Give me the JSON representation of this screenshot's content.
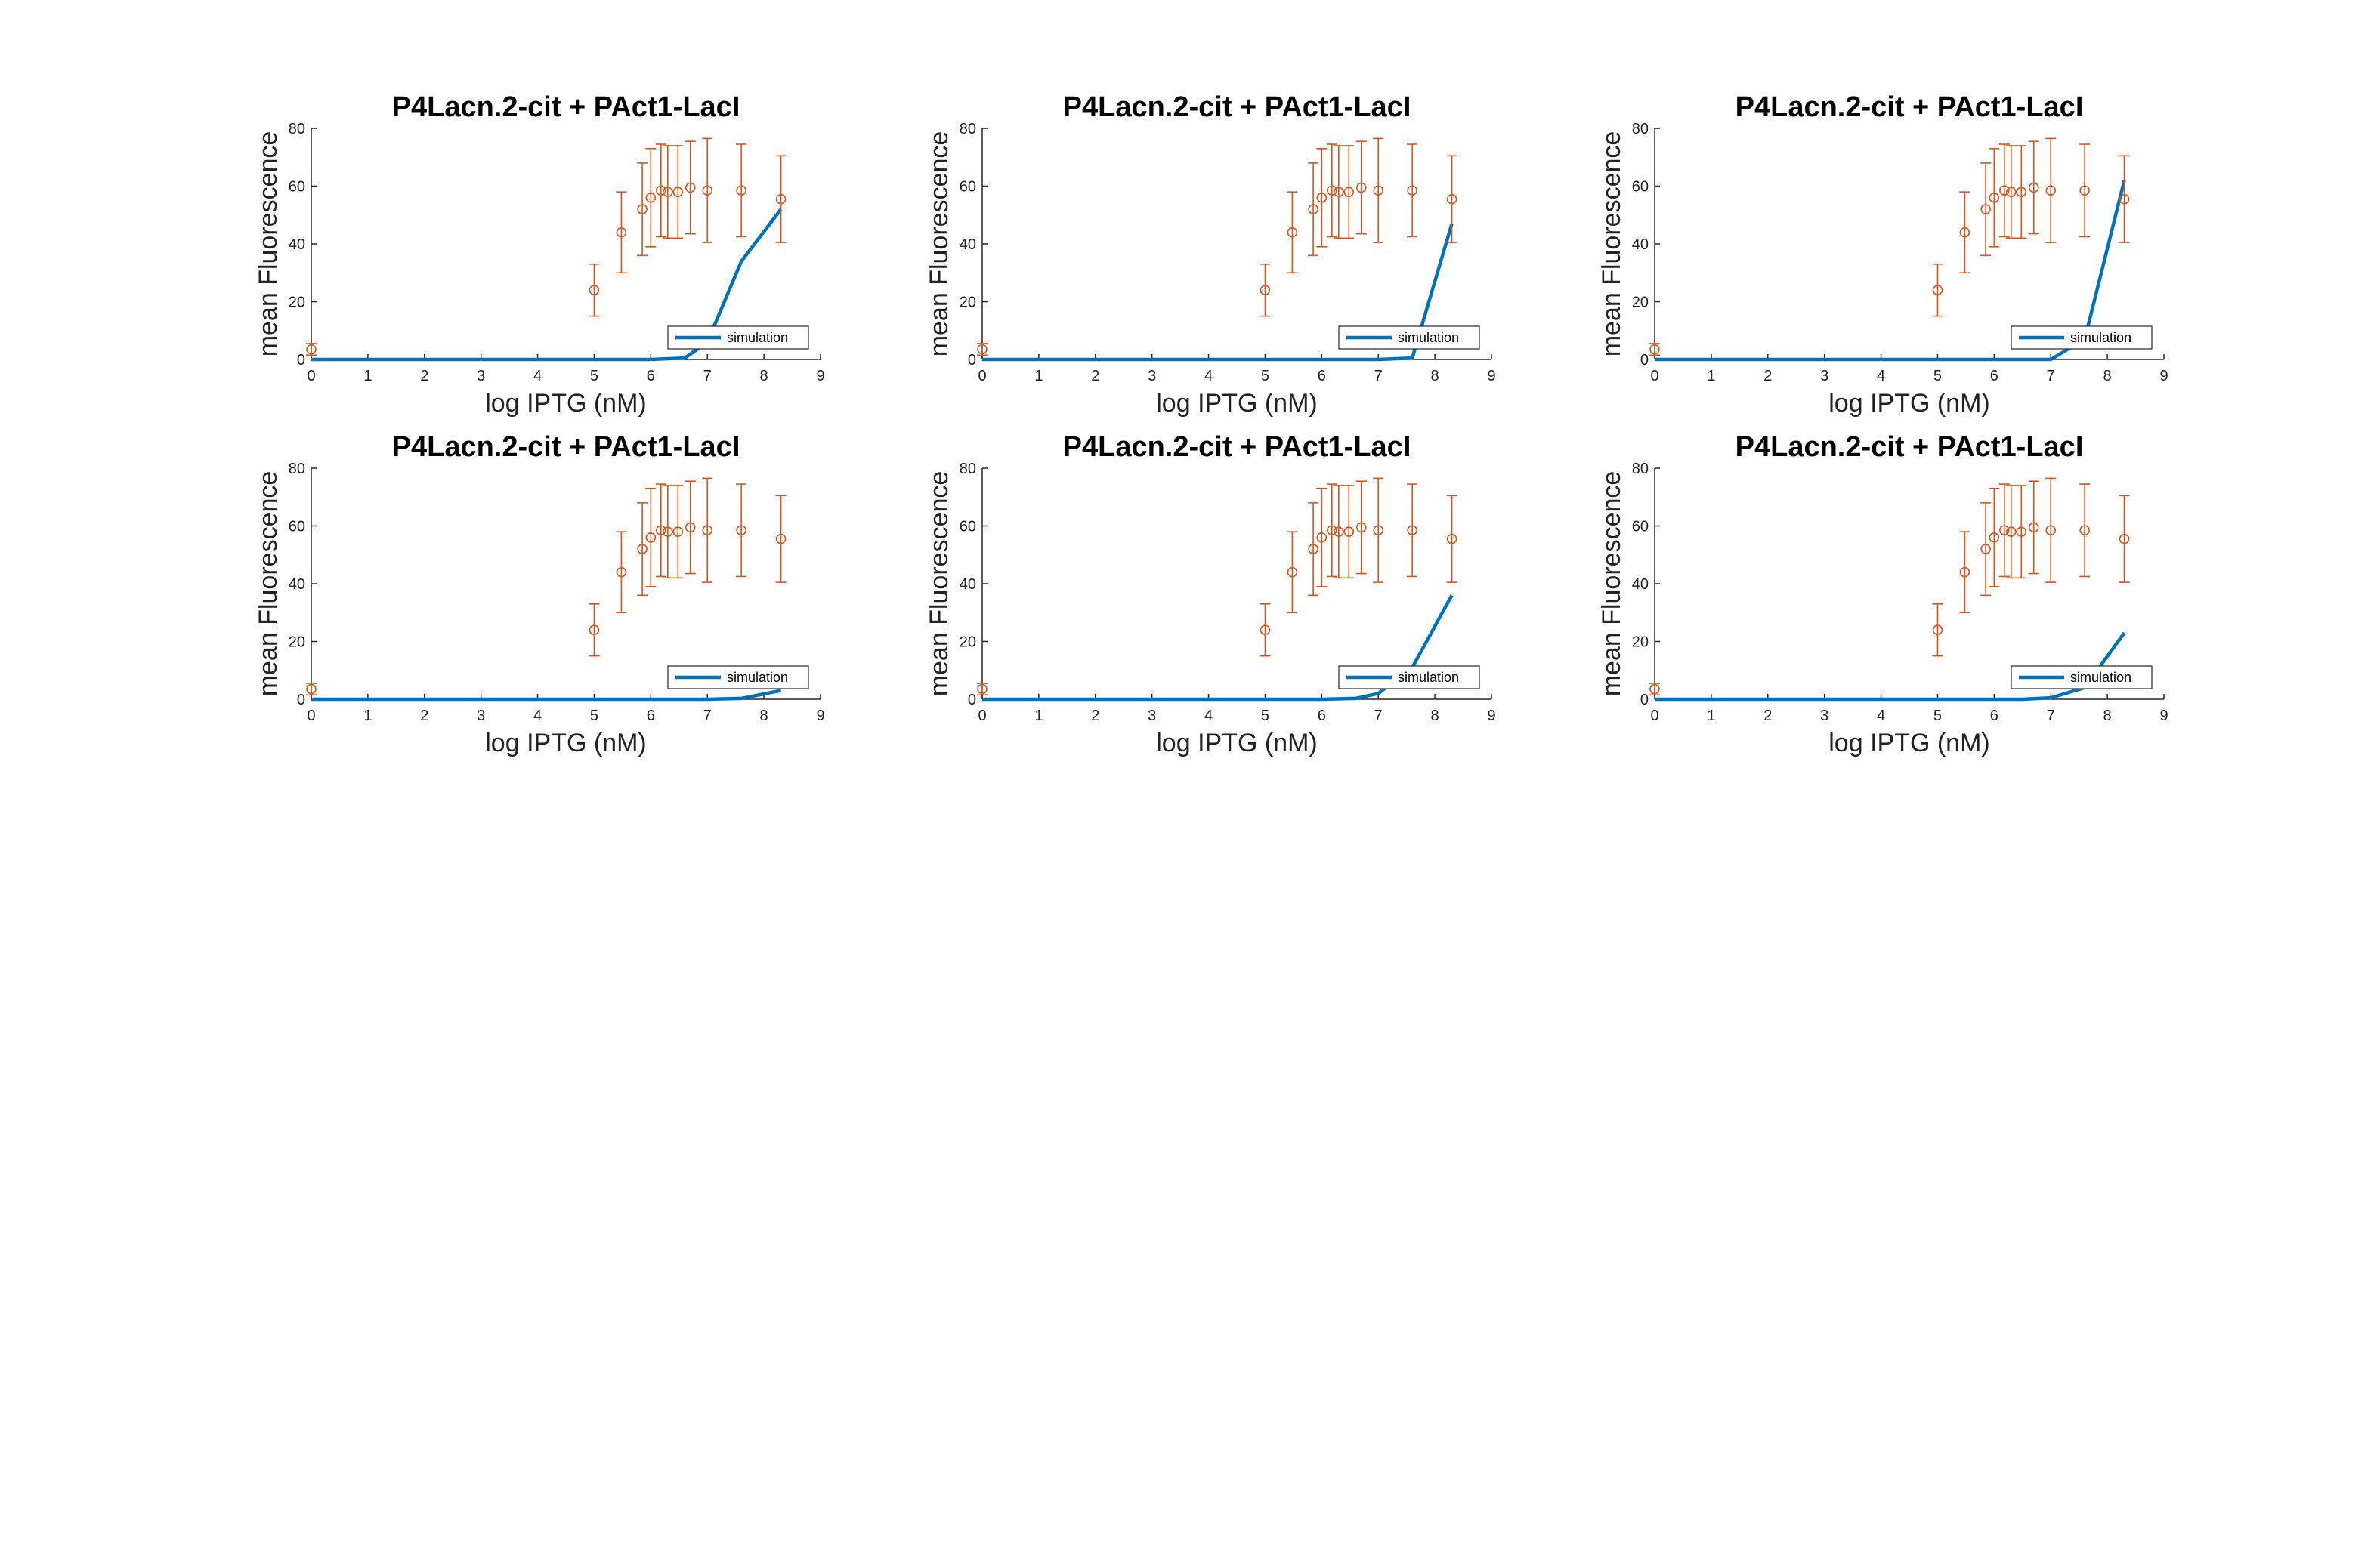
{
  "chart_data": [
    {
      "type": "line+errorbar",
      "title": "P4Lacn.2-cit + PAct1-LacI",
      "xlabel": "log IPTG (nM)",
      "ylabel": "mean Fluorescence",
      "xlim": [
        0,
        9
      ],
      "ylim": [
        0,
        80
      ],
      "xticks": [
        0,
        1,
        2,
        3,
        4,
        5,
        6,
        7,
        8,
        9
      ],
      "yticks": [
        0,
        20,
        40,
        60,
        80
      ],
      "legend": {
        "entries": [
          "simulation"
        ],
        "location": "southeast"
      },
      "series": [
        {
          "name": "simulation",
          "color": "#0072BD",
          "x": [
            0,
            5,
            6,
            6.6,
            7,
            7.6,
            8.3
          ],
          "y": [
            0,
            0,
            0,
            0.5,
            6,
            34,
            52
          ]
        },
        {
          "color": "#D95319",
          "marker": "circle",
          "x": [
            0,
            5,
            5.48,
            5.85,
            6,
            6.18,
            6.3,
            6.48,
            6.7,
            7,
            7.6,
            8.3
          ],
          "y": [
            3.5,
            24,
            44,
            52,
            56,
            58.5,
            58,
            58,
            59.5,
            58.5,
            58.5,
            55.5
          ],
          "err": [
            2,
            9,
            14,
            16,
            17,
            16,
            16,
            16,
            16,
            18,
            16,
            15
          ]
        }
      ]
    },
    {
      "type": "line+errorbar",
      "title": "P4Lacn.2-cit + PAct1-LacI",
      "xlabel": "log IPTG (nM)",
      "ylabel": "mean Fluorescence",
      "xlim": [
        0,
        9
      ],
      "ylim": [
        0,
        80
      ],
      "xticks": [
        0,
        1,
        2,
        3,
        4,
        5,
        6,
        7,
        8,
        9
      ],
      "yticks": [
        0,
        20,
        40,
        60,
        80
      ],
      "legend": {
        "entries": [
          "simulation"
        ],
        "location": "southeast"
      },
      "series": [
        {
          "name": "simulation",
          "color": "#0072BD",
          "x": [
            0,
            6,
            7,
            7.6,
            8.3
          ],
          "y": [
            0,
            0,
            0,
            0.5,
            47
          ]
        },
        {
          "color": "#D95319",
          "marker": "circle",
          "x": [
            0,
            5,
            5.48,
            5.85,
            6,
            6.18,
            6.3,
            6.48,
            6.7,
            7,
            7.6,
            8.3
          ],
          "y": [
            3.5,
            24,
            44,
            52,
            56,
            58.5,
            58,
            58,
            59.5,
            58.5,
            58.5,
            55.5
          ],
          "err": [
            2,
            9,
            14,
            16,
            17,
            16,
            16,
            16,
            16,
            18,
            16,
            15
          ]
        }
      ]
    },
    {
      "type": "line+errorbar",
      "title": "P4Lacn.2-cit + PAct1-LacI",
      "xlabel": "log IPTG (nM)",
      "ylabel": "mean Fluorescence",
      "xlim": [
        0,
        9
      ],
      "ylim": [
        0,
        80
      ],
      "xticks": [
        0,
        1,
        2,
        3,
        4,
        5,
        6,
        7,
        8,
        9
      ],
      "yticks": [
        0,
        20,
        40,
        60,
        80
      ],
      "legend": {
        "entries": [
          "simulation"
        ],
        "location": "southeast"
      },
      "series": [
        {
          "name": "simulation",
          "color": "#0072BD",
          "x": [
            0,
            6.5,
            7,
            7.6,
            8.3
          ],
          "y": [
            0,
            0,
            0,
            7,
            62
          ]
        },
        {
          "color": "#D95319",
          "marker": "circle",
          "x": [
            0,
            5,
            5.48,
            5.85,
            6,
            6.18,
            6.3,
            6.48,
            6.7,
            7,
            7.6,
            8.3
          ],
          "y": [
            3.5,
            24,
            44,
            52,
            56,
            58.5,
            58,
            58,
            59.5,
            58.5,
            58.5,
            55.5
          ],
          "err": [
            2,
            9,
            14,
            16,
            17,
            16,
            16,
            16,
            16,
            18,
            16,
            15
          ]
        }
      ]
    },
    {
      "type": "line+errorbar",
      "title": "P4Lacn.2-cit + PAct1-LacI",
      "xlabel": "log IPTG (nM)",
      "ylabel": "mean Fluorescence",
      "xlim": [
        0,
        9
      ],
      "ylim": [
        0,
        80
      ],
      "xticks": [
        0,
        1,
        2,
        3,
        4,
        5,
        6,
        7,
        8,
        9
      ],
      "yticks": [
        0,
        20,
        40,
        60,
        80
      ],
      "legend": {
        "entries": [
          "simulation"
        ],
        "location": "southeast"
      },
      "series": [
        {
          "name": "simulation",
          "color": "#0072BD",
          "x": [
            0,
            7,
            7.6,
            8.3
          ],
          "y": [
            0,
            0,
            0.3,
            3
          ]
        },
        {
          "color": "#D95319",
          "marker": "circle",
          "x": [
            0,
            5,
            5.48,
            5.85,
            6,
            6.18,
            6.3,
            6.48,
            6.7,
            7,
            7.6,
            8.3
          ],
          "y": [
            3.5,
            24,
            44,
            52,
            56,
            58.5,
            58,
            58,
            59.5,
            58.5,
            58.5,
            55.5
          ],
          "err": [
            2,
            9,
            14,
            16,
            17,
            16,
            16,
            16,
            16,
            18,
            16,
            15
          ]
        }
      ]
    },
    {
      "type": "line+errorbar",
      "title": "P4Lacn.2-cit + PAct1-LacI",
      "xlabel": "log IPTG (nM)",
      "ylabel": "mean Fluorescence",
      "xlim": [
        0,
        9
      ],
      "ylim": [
        0,
        80
      ],
      "xticks": [
        0,
        1,
        2,
        3,
        4,
        5,
        6,
        7,
        8,
        9
      ],
      "yticks": [
        0,
        20,
        40,
        60,
        80
      ],
      "legend": {
        "entries": [
          "simulation"
        ],
        "location": "southeast"
      },
      "series": [
        {
          "name": "simulation",
          "color": "#0072BD",
          "x": [
            0,
            6,
            6.6,
            7,
            7.6,
            8.3
          ],
          "y": [
            0,
            0,
            0.3,
            2,
            11,
            36
          ]
        },
        {
          "color": "#D95319",
          "marker": "circle",
          "x": [
            0,
            5,
            5.48,
            5.85,
            6,
            6.18,
            6.3,
            6.48,
            6.7,
            7,
            7.6,
            8.3
          ],
          "y": [
            3.5,
            24,
            44,
            52,
            56,
            58.5,
            58,
            58,
            59.5,
            58.5,
            58.5,
            55.5
          ],
          "err": [
            2,
            9,
            14,
            16,
            17,
            16,
            16,
            16,
            16,
            18,
            16,
            15
          ]
        }
      ]
    },
    {
      "type": "line+errorbar",
      "title": "P4Lacn.2-cit + PAct1-LacI",
      "xlabel": "log IPTG (nM)",
      "ylabel": "mean Fluorescence",
      "xlim": [
        0,
        9
      ],
      "ylim": [
        0,
        80
      ],
      "xticks": [
        0,
        1,
        2,
        3,
        4,
        5,
        6,
        7,
        8,
        9
      ],
      "yticks": [
        0,
        20,
        40,
        60,
        80
      ],
      "legend": {
        "entries": [
          "simulation"
        ],
        "location": "southeast"
      },
      "series": [
        {
          "name": "simulation",
          "color": "#0072BD",
          "x": [
            0,
            6.5,
            7,
            7.6,
            8.3
          ],
          "y": [
            0,
            0,
            0.5,
            4,
            23
          ]
        },
        {
          "color": "#D95319",
          "marker": "circle",
          "x": [
            0,
            5,
            5.48,
            5.85,
            6,
            6.18,
            6.3,
            6.48,
            6.7,
            7,
            7.6,
            8.3
          ],
          "y": [
            3.5,
            24,
            44,
            52,
            56,
            58.5,
            58,
            58,
            59.5,
            58.5,
            58.5,
            55.5
          ],
          "err": [
            2,
            9,
            14,
            16,
            17,
            16,
            16,
            16,
            16,
            18,
            16,
            15
          ]
        }
      ]
    }
  ]
}
